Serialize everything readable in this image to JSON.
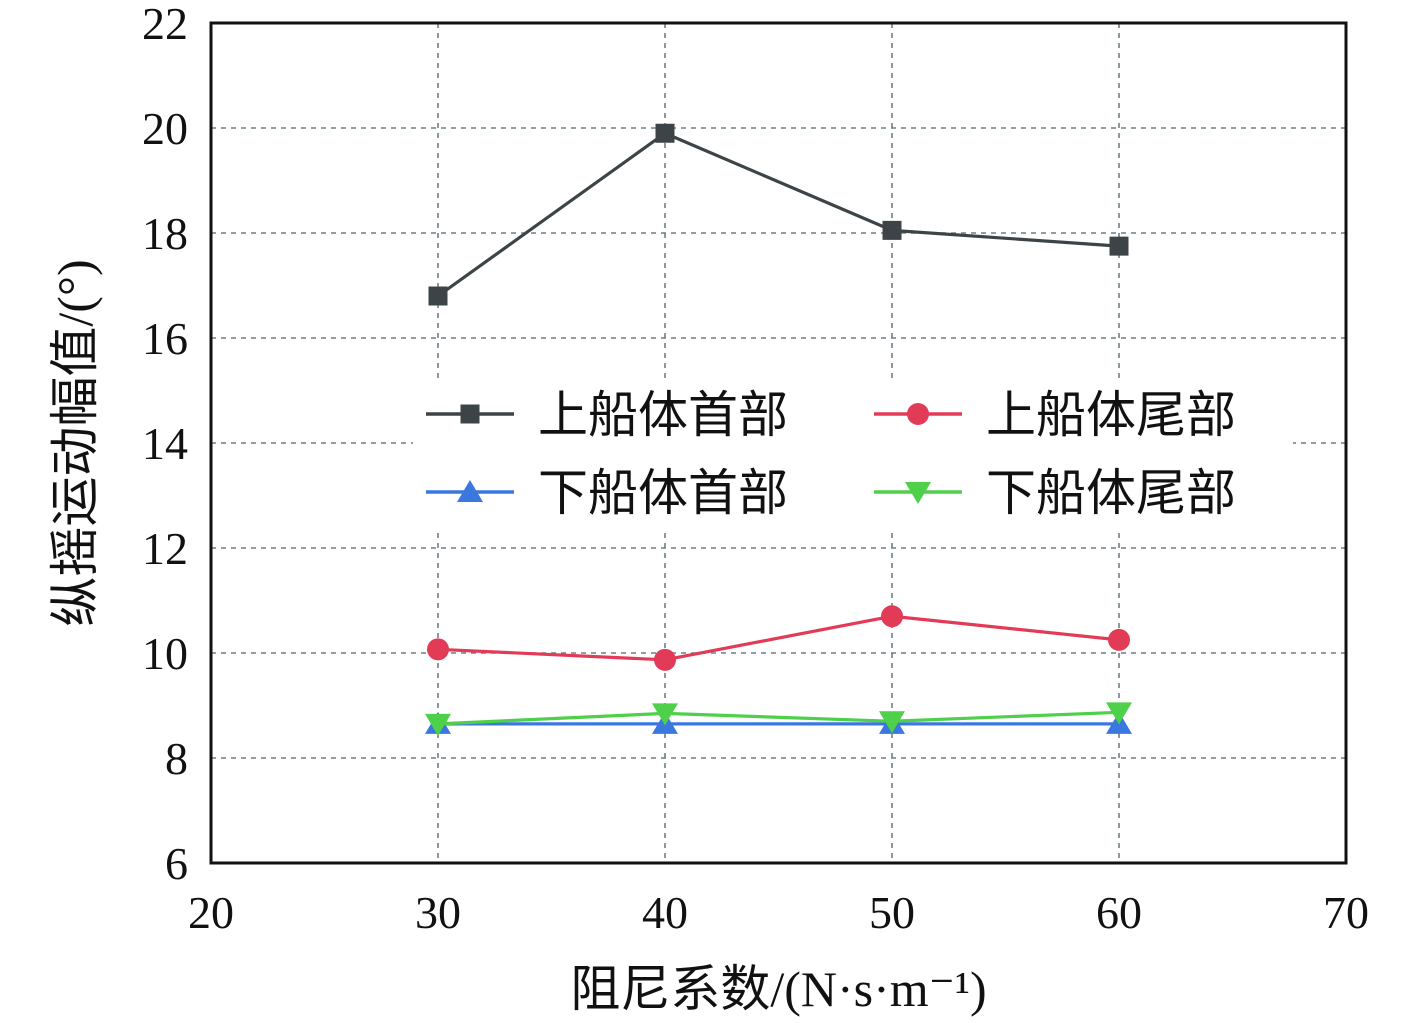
{
  "chart_data": {
    "type": "line",
    "title": "",
    "xlabel": "阻尼系数/(N·s·m⁻¹)",
    "ylabel": "纵摇运动幅值/(°)",
    "xlim": [
      20,
      70
    ],
    "ylim": [
      6,
      22
    ],
    "xticks": [
      20,
      30,
      40,
      50,
      60,
      70
    ],
    "yticks": [
      6,
      8,
      10,
      12,
      14,
      16,
      18,
      20,
      22
    ],
    "grid": true,
    "grid_style": "dashed",
    "legend_position": "center, two columns",
    "x": [
      30,
      40,
      50,
      60
    ],
    "series": [
      {
        "name": "上船体首部",
        "values": [
          16.8,
          19.9,
          18.05,
          17.75
        ],
        "color": "#3d4447",
        "marker": "square"
      },
      {
        "name": "上船体尾部",
        "values": [
          10.07,
          9.87,
          10.7,
          10.25
        ],
        "color": "#e23b57",
        "marker": "circle"
      },
      {
        "name": "下船体首部",
        "values": [
          8.65,
          8.65,
          8.65,
          8.65
        ],
        "color": "#3a78e0",
        "marker": "triangle-up"
      },
      {
        "name": "下船体尾部",
        "values": [
          8.65,
          8.85,
          8.7,
          8.87
        ],
        "color": "#4fd04a",
        "marker": "triangle-down"
      }
    ],
    "legend_order": [
      0,
      1,
      2,
      3
    ]
  }
}
